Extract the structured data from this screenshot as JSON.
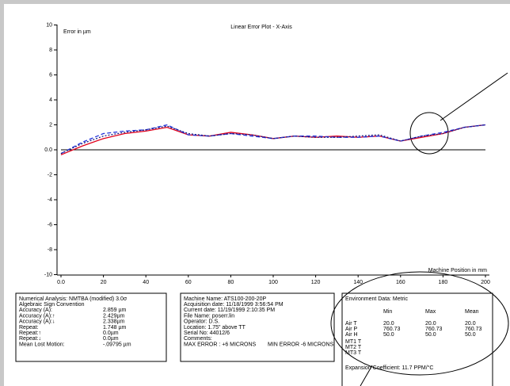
{
  "chart_data": {
    "type": "line",
    "title": "Linear Error Plot - X-Axis",
    "y_label": "Error in µm",
    "x_label": "Machine Position in mm",
    "x": [
      0,
      10,
      20,
      30,
      40,
      50,
      60,
      70,
      80,
      90,
      100,
      110,
      120,
      130,
      140,
      150,
      160,
      170,
      180,
      190,
      200
    ],
    "series": [
      {
        "color": "#e0001b",
        "dash": "solid",
        "values": [
          -0.4,
          0.3,
          0.9,
          1.3,
          1.5,
          1.8,
          1.2,
          1.1,
          1.4,
          1.2,
          0.9,
          1.1,
          1.0,
          1.1,
          1.0,
          1.1,
          0.7,
          1.0,
          1.3,
          1.8,
          2.0
        ]
      },
      {
        "color": "#2233dd",
        "dash": "dashed",
        "values": [
          -0.3,
          0.6,
          1.3,
          1.5,
          1.6,
          2.0,
          1.2,
          1.1,
          1.3,
          1.1,
          0.9,
          1.1,
          1.1,
          1.0,
          1.0,
          1.1,
          0.7,
          1.1,
          1.4,
          1.8,
          2.0
        ]
      },
      {
        "color": "#1a1a80",
        "dash": "dotted",
        "values": [
          -0.3,
          0.5,
          1.1,
          1.4,
          1.6,
          1.9,
          1.3,
          1.1,
          1.3,
          1.2,
          0.9,
          1.1,
          1.0,
          1.0,
          1.1,
          1.2,
          0.7,
          1.1,
          1.3,
          1.8,
          2.0
        ]
      }
    ],
    "xlim": [
      0,
      200
    ],
    "xticks": [
      {
        "value": 0,
        "label": "0.0"
      },
      20,
      40,
      60,
      80,
      100,
      120,
      140,
      160,
      180,
      200
    ],
    "ylim": [
      -10,
      10
    ],
    "yticks": [
      -10,
      -8,
      -6,
      -4,
      -2,
      {
        "value": 0,
        "label": "0.0"
      },
      2,
      4,
      6,
      8,
      10
    ],
    "zero_line": true
  },
  "analysis": {
    "rows": [
      [
        "Numerical Analysis:  NMTBA (modified) 3.0σ"
      ],
      [
        "Algebraic Sign Convention"
      ],
      [
        "Accuracy (A):",
        "2.859 µm"
      ],
      [
        "Accuracy (A):↑",
        "2.429µm"
      ],
      [
        "Accuracy (A):↓",
        "2.338µm"
      ],
      [
        "Repeat:",
        "1.748 µm"
      ],
      [
        "Repeat:↑",
        "0.0µm"
      ],
      [
        "Repeat:↓",
        "0.0µm"
      ],
      [
        "Mean Lost Motion:",
        "-.09795 µm"
      ]
    ]
  },
  "machine": {
    "rows": [
      [
        "Machine Name: ATS100-200-20P"
      ],
      [
        "Acquisition date: 11/18/1999 3:56:54 PM"
      ],
      [
        "Current date: 11/19/1999 2:10:35 PM"
      ],
      [
        "File Name:  poserr.lin"
      ],
      [
        "Operator: D.S."
      ],
      [
        "Location:  1.75\" above TT"
      ],
      [
        "Serial No:  44012/6"
      ],
      [
        "Comments:"
      ],
      [
        "MAX ERROR :  +6 MICRONS",
        "MIN ERROR -6 MICRONS"
      ]
    ]
  },
  "environment": {
    "title": "Environment Data: Metric",
    "header": [
      "Min",
      "Max",
      "Mean"
    ],
    "rows": [
      [
        "Air T",
        "20.0",
        "20.0",
        "20.0"
      ],
      [
        "Air P",
        "760.73",
        "760.73",
        "760.73"
      ],
      [
        "Air H",
        "50.0",
        "50.0",
        "50.0"
      ],
      [
        "MT1 T"
      ],
      [
        "MT2 T"
      ],
      [
        "MT3 T"
      ]
    ],
    "footer": "Expansion Coefficient: 11.7 PPM/°C"
  }
}
